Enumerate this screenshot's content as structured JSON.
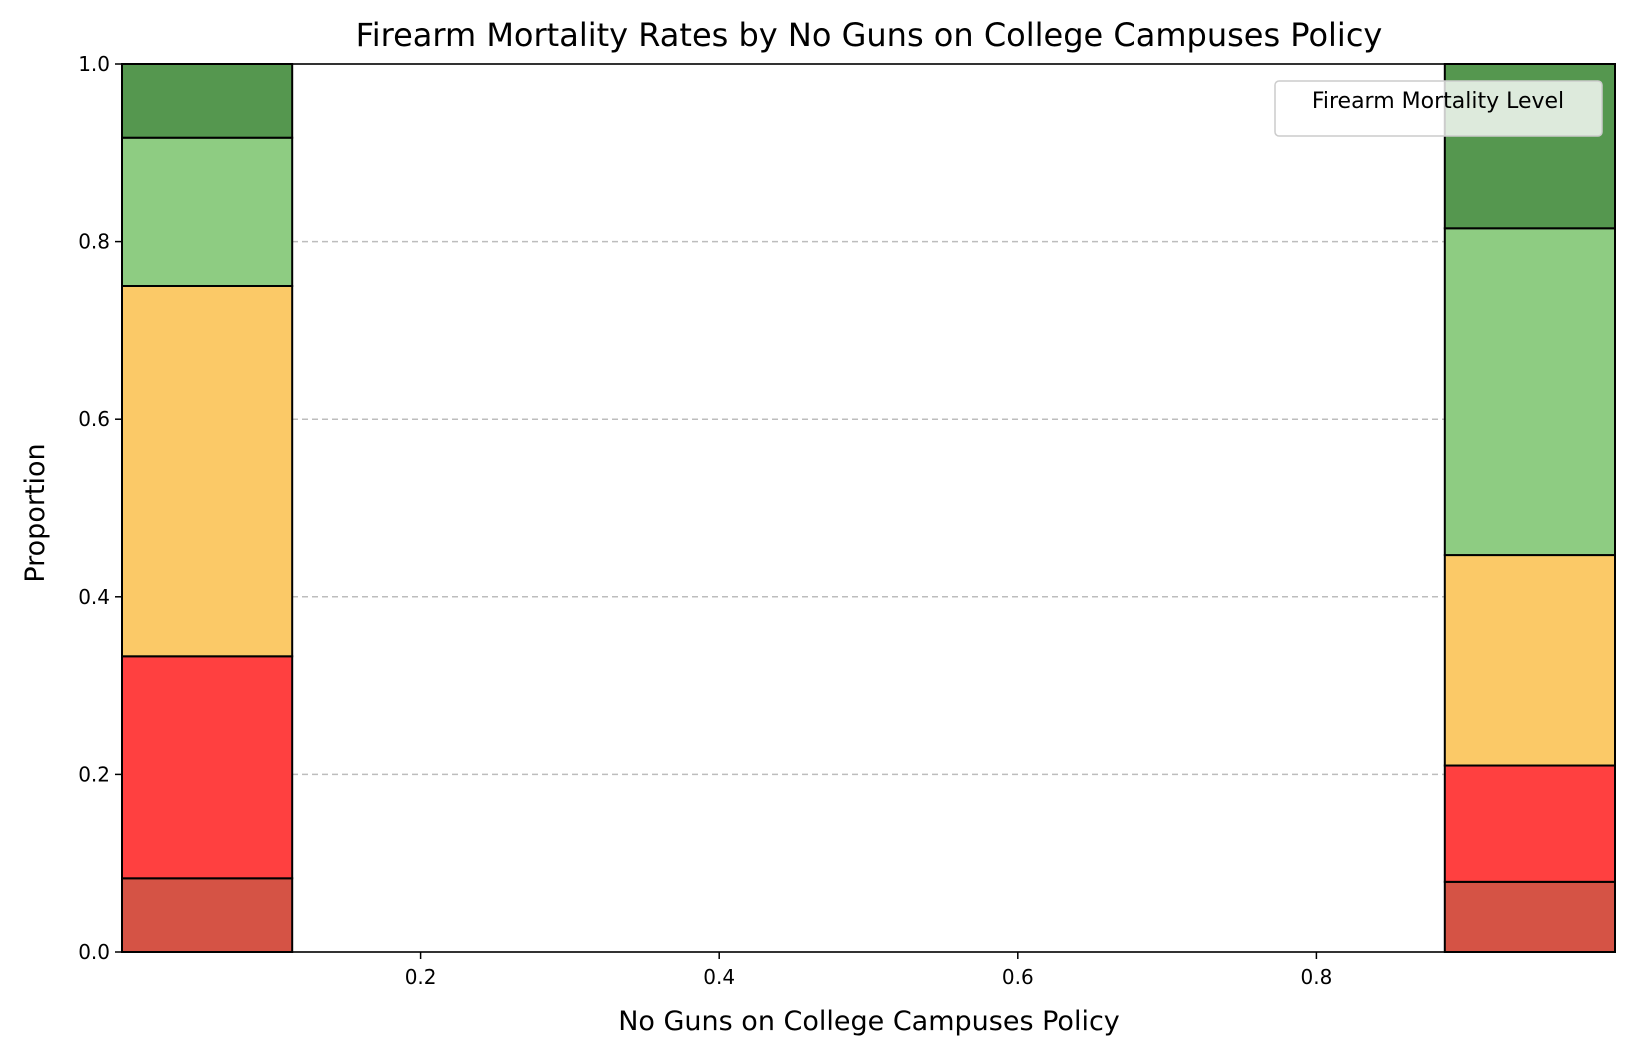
{
  "chart_data": {
    "type": "bar",
    "title": "Firearm Mortality Rates by No Guns on College Campuses Policy",
    "xlabel": "No Guns on College Campuses Policy",
    "ylabel": "Proportion",
    "xlim": [
      0.0,
      1.0
    ],
    "ylim": [
      0.0,
      1.0
    ],
    "x_ticks": [
      0.2,
      0.4,
      0.6,
      0.8
    ],
    "y_ticks": [
      0.0,
      0.2,
      0.4,
      0.6,
      0.8,
      1.0
    ],
    "x_tick_labels": [
      "0.2",
      "0.4",
      "0.6",
      "0.8"
    ],
    "y_tick_labels": [
      "0.0",
      "0.2",
      "0.4",
      "0.6",
      "0.8",
      "1.0"
    ],
    "grid": "y-dashed",
    "legend_title": "Firearm Mortality Level",
    "legend_position": "top-right",
    "bins": [
      {
        "x_start": 0.0,
        "x_end": 0.114
      },
      {
        "x_start": 0.886,
        "x_end": 1.0
      }
    ],
    "series": [
      {
        "color": "#d55345",
        "values": [
          0.083,
          0.079
        ]
      },
      {
        "color": "#ff4040",
        "values": [
          0.25,
          0.131
        ]
      },
      {
        "color": "#fbc967",
        "values": [
          0.417,
          0.237
        ]
      },
      {
        "color": "#8ecc82",
        "values": [
          0.167,
          0.368
        ]
      },
      {
        "color": "#55974f",
        "values": [
          0.083,
          0.185
        ]
      }
    ]
  }
}
